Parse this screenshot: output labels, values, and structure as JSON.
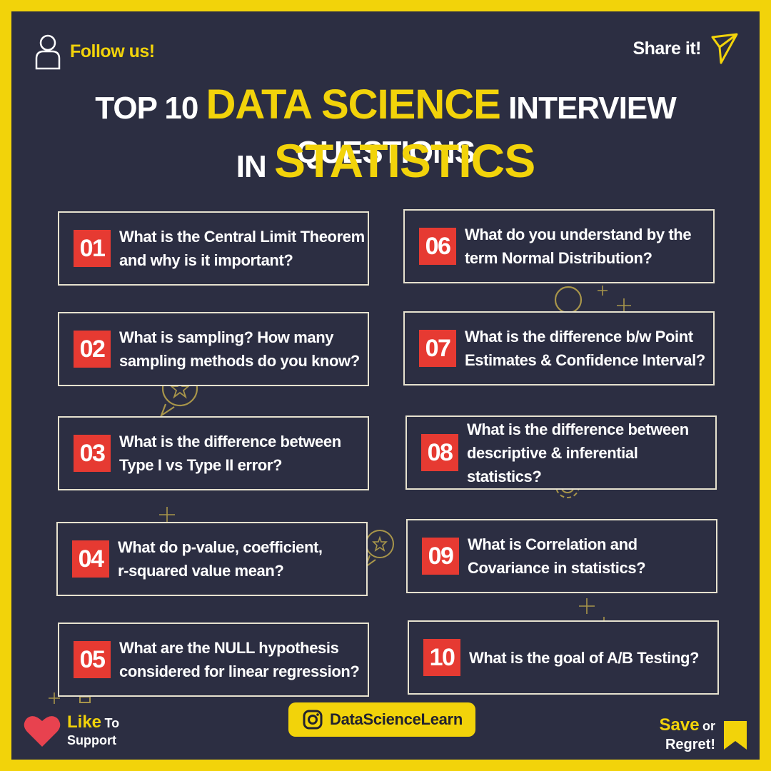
{
  "header": {
    "follow_label": "Follow us!",
    "share_label": "Share it!"
  },
  "title": {
    "line1_prefix": "TOP 10",
    "line1_highlight": "DATA SCIENCE",
    "line1_suffix": "INTERVIEW QUESTIONS",
    "line2_prefix": "IN",
    "line2_highlight": "STATISTICS"
  },
  "questions": [
    {
      "num": "01",
      "line1": "What is the Central Limit Theorem",
      "line2": "and why is it important?"
    },
    {
      "num": "02",
      "line1": "What is sampling? How many",
      "line2": "sampling methods do you know?"
    },
    {
      "num": "03",
      "line1": "What is the difference between",
      "line2": "Type I vs Type II error?"
    },
    {
      "num": "04",
      "line1": "What do p-value, coefficient,",
      "line2": "r-squared value mean?"
    },
    {
      "num": "05",
      "line1": "What are the NULL hypothesis",
      "line2": "considered for linear regression?"
    },
    {
      "num": "06",
      "line1": "What do you understand by the",
      "line2": "term Normal Distribution?"
    },
    {
      "num": "07",
      "line1": "What is the difference b/w Point",
      "line2": "Estimates & Confidence Interval?"
    },
    {
      "num": "08",
      "line1": "What is the difference between",
      "line2": "descriptive & inferential statistics?"
    },
    {
      "num": "09",
      "line1": "What is Correlation and",
      "line2": "Covariance in statistics?"
    },
    {
      "num": "10",
      "line1": "What is the goal of A/B Testing?",
      "line2": ""
    }
  ],
  "footer": {
    "like_word": "Like",
    "to_word": "To",
    "support_word": "Support",
    "handle": "DataScienceLearn",
    "save_word": "Save",
    "or_word": "or",
    "regret_word": "Regret!"
  },
  "colors": {
    "accent_yellow": "#f2d30a",
    "background_navy": "#2c2e42",
    "number_red": "#e63a32",
    "heart_red": "#e8424f"
  }
}
